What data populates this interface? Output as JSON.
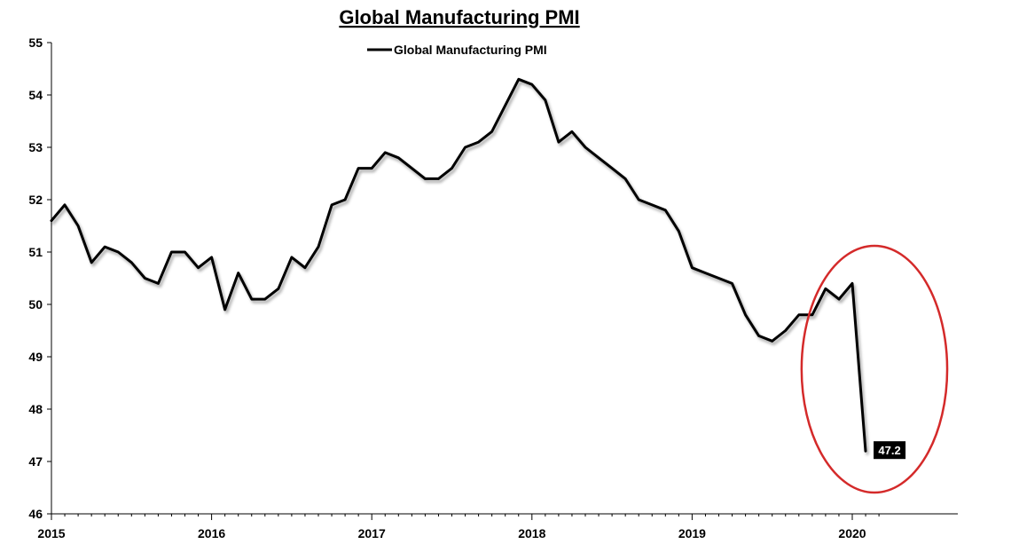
{
  "chart_data": {
    "type": "line",
    "title": "Global Manufacturing PMI",
    "xlabel": "",
    "ylabel": "",
    "ylim": [
      46,
      55
    ],
    "yticks": [
      46,
      47,
      48,
      49,
      50,
      51,
      52,
      53,
      54,
      55
    ],
    "xticks": [
      "2015",
      "2016",
      "2017",
      "2018",
      "2019",
      "2020"
    ],
    "grid": false,
    "legend": {
      "position": "top-center",
      "entries": [
        "Global Manufacturing PMI"
      ]
    },
    "series": [
      {
        "name": "Global Manufacturing PMI",
        "color": "#000000",
        "x": [
          "2015-01",
          "2015-02",
          "2015-03",
          "2015-04",
          "2015-05",
          "2015-06",
          "2015-07",
          "2015-08",
          "2015-09",
          "2015-10",
          "2015-11",
          "2015-12",
          "2016-01",
          "2016-02",
          "2016-03",
          "2016-04",
          "2016-05",
          "2016-06",
          "2016-07",
          "2016-08",
          "2016-09",
          "2016-10",
          "2016-11",
          "2016-12",
          "2017-01",
          "2017-02",
          "2017-03",
          "2017-04",
          "2017-05",
          "2017-06",
          "2017-07",
          "2017-08",
          "2017-09",
          "2017-10",
          "2017-11",
          "2017-12",
          "2018-01",
          "2018-02",
          "2018-03",
          "2018-04",
          "2018-05",
          "2018-06",
          "2018-07",
          "2018-08",
          "2018-09",
          "2018-10",
          "2018-11",
          "2018-12",
          "2019-01",
          "2019-02",
          "2019-03",
          "2019-04",
          "2019-05",
          "2019-06",
          "2019-07",
          "2019-08",
          "2019-09",
          "2019-10",
          "2019-11",
          "2019-12",
          "2020-01",
          "2020-02"
        ],
        "values": [
          51.6,
          51.9,
          51.5,
          50.8,
          51.1,
          51.0,
          50.8,
          50.5,
          50.4,
          51.0,
          51.0,
          50.7,
          50.9,
          49.9,
          50.6,
          50.1,
          50.1,
          50.3,
          50.9,
          50.7,
          51.1,
          51.9,
          52.0,
          52.6,
          52.6,
          52.9,
          52.8,
          52.6,
          52.4,
          52.4,
          52.6,
          53.0,
          53.1,
          53.3,
          53.8,
          54.3,
          54.2,
          53.9,
          53.1,
          53.3,
          53.0,
          52.8,
          52.6,
          52.4,
          52.0,
          51.9,
          51.8,
          51.4,
          50.7,
          50.6,
          50.5,
          50.4,
          49.8,
          49.4,
          49.3,
          49.5,
          49.8,
          49.8,
          50.3,
          50.1,
          50.4,
          47.2
        ]
      }
    ],
    "annotations": [
      {
        "text": "47.2",
        "x": "2020-02",
        "y": 47.2
      }
    ],
    "highlight": {
      "shape": "ellipse",
      "color": "#d42a2a",
      "around_x": [
        "2019-10",
        "2020-02"
      ]
    }
  }
}
